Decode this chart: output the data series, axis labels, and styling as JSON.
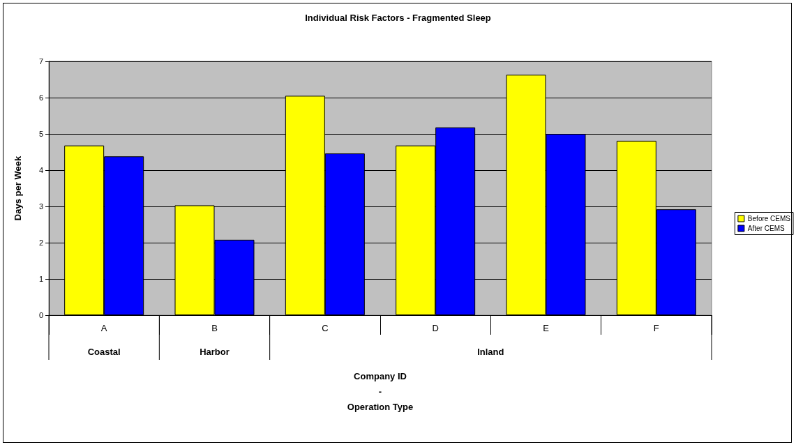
{
  "chart_data": {
    "type": "bar",
    "title": "Individual Risk Factors - Fragmented Sleep",
    "xlabel": "Company ID\n-\nOperation Type",
    "ylabel": "Days per Week",
    "categories": [
      "A",
      "B",
      "C",
      "D",
      "E",
      "F"
    ],
    "series": [
      {
        "name": "Before CEMS",
        "color": "#ffff00",
        "values": [
          4.68,
          3.03,
          6.05,
          4.68,
          6.63,
          4.81
        ]
      },
      {
        "name": "After CEMS",
        "color": "#0000ff",
        "values": [
          4.38,
          2.08,
          4.46,
          5.18,
          5.0,
          2.92
        ]
      }
    ],
    "annotations": [
      "Coastal",
      "Harbor",
      "Inland"
    ],
    "ylim": [
      0,
      7
    ],
    "yticks": [
      0,
      1,
      2,
      3,
      4,
      5,
      6,
      7
    ],
    "grid": "y",
    "legend": "right"
  }
}
